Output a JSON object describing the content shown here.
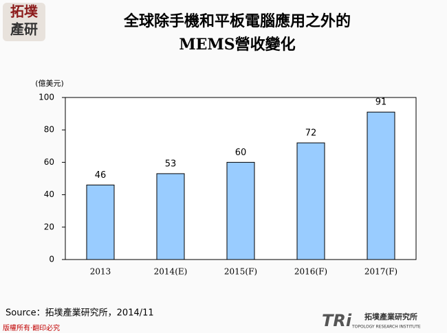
{
  "logo": {
    "line1": "拓墣",
    "line2": "產研"
  },
  "chart_data": {
    "type": "bar",
    "title": "全球除手機和平板電腦應用之外的",
    "subtitle": "MEMS營收變化",
    "y_label": "(億美元)",
    "categories": [
      "2013",
      "2014(E)",
      "2015(F)",
      "2016(F)",
      "2017(F)"
    ],
    "values": [
      46,
      53,
      60,
      72,
      91
    ],
    "color": "#99ccff",
    "ylim": [
      0,
      100
    ],
    "yticks": [
      0,
      20,
      40,
      60,
      80,
      100
    ],
    "grid": false
  },
  "source": "Source：拓墣產業研究所，2014/11",
  "footer": "版權所有‧翻印必究",
  "brand": {
    "mark": "TRi",
    "name": "拓墣產業研究所",
    "english": "TOPOLOGY RESEARCH INSTITUTE"
  }
}
